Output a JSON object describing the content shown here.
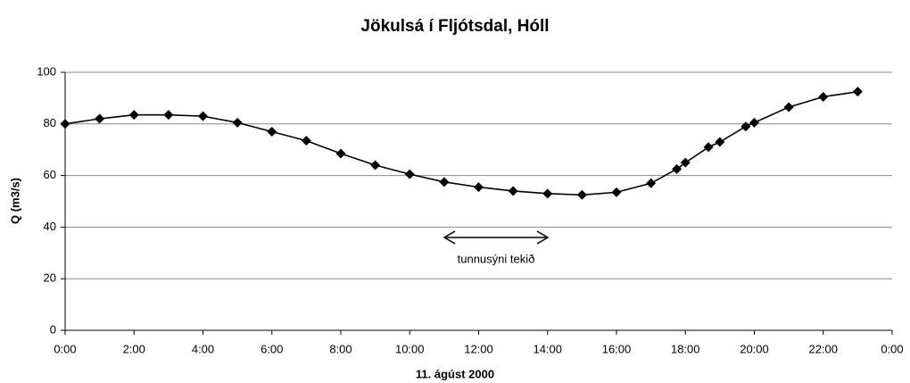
{
  "chart_data": {
    "type": "line",
    "title": "Jökulsá í Fljótsdal, Hóll",
    "x_label": "11. ágúst 2000",
    "y_label": "Q (m3/s)",
    "annotation": "tunnusýni tekið",
    "x": [
      0,
      1,
      2,
      3,
      4,
      5,
      6,
      7,
      8,
      9,
      10,
      11,
      12,
      13,
      14,
      15,
      16,
      17,
      17.75,
      18,
      18.67,
      19,
      19.75,
      20,
      21,
      22,
      23
    ],
    "series": [
      {
        "name": "Q",
        "color": "#000000",
        "values": [
          80,
          82,
          83.5,
          83.5,
          83,
          80.5,
          77,
          73.5,
          68.5,
          64,
          60.5,
          57.5,
          55.5,
          54,
          53,
          52.5,
          53.5,
          57,
          62.5,
          65,
          71,
          73,
          79,
          80.5,
          86.5,
          90.5,
          92.5
        ]
      }
    ],
    "xlim": [
      0,
      24
    ],
    "xticks": [
      {
        "value": 0,
        "label": "0:00"
      },
      {
        "value": 2,
        "label": "2:00"
      },
      {
        "value": 4,
        "label": "4:00"
      },
      {
        "value": 6,
        "label": "6:00"
      },
      {
        "value": 8,
        "label": "8:00"
      },
      {
        "value": 10,
        "label": "10:00"
      },
      {
        "value": 12,
        "label": "12:00"
      },
      {
        "value": 14,
        "label": "14:00"
      },
      {
        "value": 16,
        "label": "16:00"
      },
      {
        "value": 18,
        "label": "18:00"
      },
      {
        "value": 20,
        "label": "20:00"
      },
      {
        "value": 22,
        "label": "22:00"
      },
      {
        "value": 24,
        "label": "0:00"
      }
    ],
    "ylim": [
      0,
      100
    ],
    "yticks": [
      0,
      20,
      40,
      60,
      80,
      100
    ],
    "grid": true
  }
}
